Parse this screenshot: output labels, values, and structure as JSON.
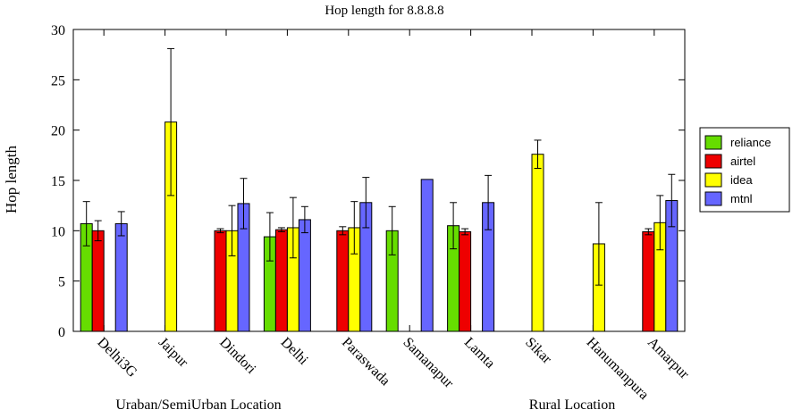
{
  "chart_data": {
    "type": "bar",
    "title": "Hop length for 8.8.8.8",
    "ylabel": "Hop length",
    "xlabel": "",
    "ylim": [
      0,
      30
    ],
    "yticks": [
      0,
      5,
      10,
      15,
      20,
      25,
      30
    ],
    "grid": false,
    "legend_position": "right",
    "categories": [
      "Delhi3G",
      "Jaipur",
      "Dindori",
      "Delhi",
      "Paraswada",
      "Samanapur",
      "Lamta",
      "Sikar",
      "Hanumanpura",
      "Amarpur"
    ],
    "groups": [
      {
        "label": "Uraban/SemiUrban Location"
      },
      {
        "label": "Rural Location"
      }
    ],
    "series": [
      {
        "name": "reliance",
        "color": "#66dd00",
        "values": [
          10.7,
          null,
          null,
          9.4,
          null,
          10.0,
          10.5,
          null,
          null,
          null
        ],
        "errors": [
          2.2,
          null,
          null,
          2.4,
          null,
          2.4,
          2.3,
          null,
          null,
          null
        ]
      },
      {
        "name": "airtel",
        "color": "#ee0000",
        "values": [
          10.0,
          null,
          10.0,
          10.1,
          10.0,
          null,
          9.9,
          null,
          null,
          9.9
        ],
        "errors": [
          1.0,
          null,
          0.2,
          0.2,
          0.4,
          null,
          0.3,
          null,
          null,
          0.3
        ]
      },
      {
        "name": "idea",
        "color": "#ffff00",
        "values": [
          null,
          20.8,
          10.0,
          10.3,
          10.3,
          null,
          null,
          17.6,
          8.7,
          10.8
        ],
        "errors": [
          null,
          7.3,
          2.5,
          3.0,
          2.6,
          null,
          null,
          1.4,
          4.1,
          2.7
        ]
      },
      {
        "name": "mtnl",
        "color": "#6666ff",
        "values": [
          10.7,
          null,
          12.7,
          11.1,
          12.8,
          15.1,
          12.8,
          null,
          null,
          13.0
        ],
        "errors": [
          1.2,
          null,
          2.5,
          1.3,
          2.5,
          null,
          2.7,
          null,
          null,
          2.6
        ]
      }
    ]
  }
}
